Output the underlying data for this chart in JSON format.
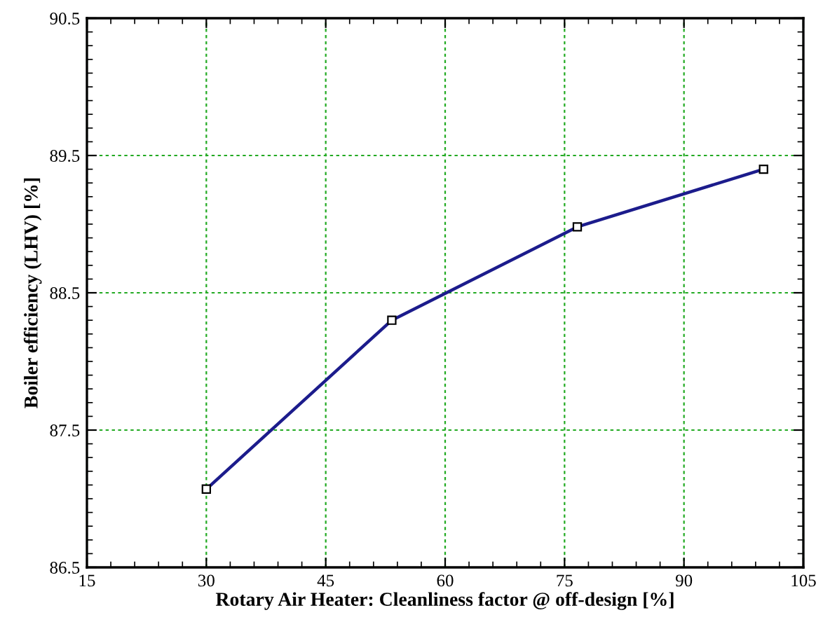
{
  "chart_data": {
    "type": "line",
    "xlabel": "Rotary Air Heater: Cleanliness factor @ off-design [%]",
    "ylabel": "Boiler efficiency (LHV) [%]",
    "x": [
      30,
      53.3,
      76.6,
      100
    ],
    "series": [
      {
        "color": "#1c1c8c",
        "values": [
          87.07,
          88.3,
          88.98,
          89.4
        ]
      }
    ],
    "xlim": [
      15,
      105
    ],
    "xticks": [
      15,
      30,
      45,
      60,
      75,
      90,
      105
    ],
    "ylim": [
      86.5,
      90.5
    ],
    "yticks": [
      86.5,
      87.5,
      88.5,
      89.5,
      90.5
    ],
    "grid": true,
    "marker": "square",
    "line_style": "solid"
  }
}
